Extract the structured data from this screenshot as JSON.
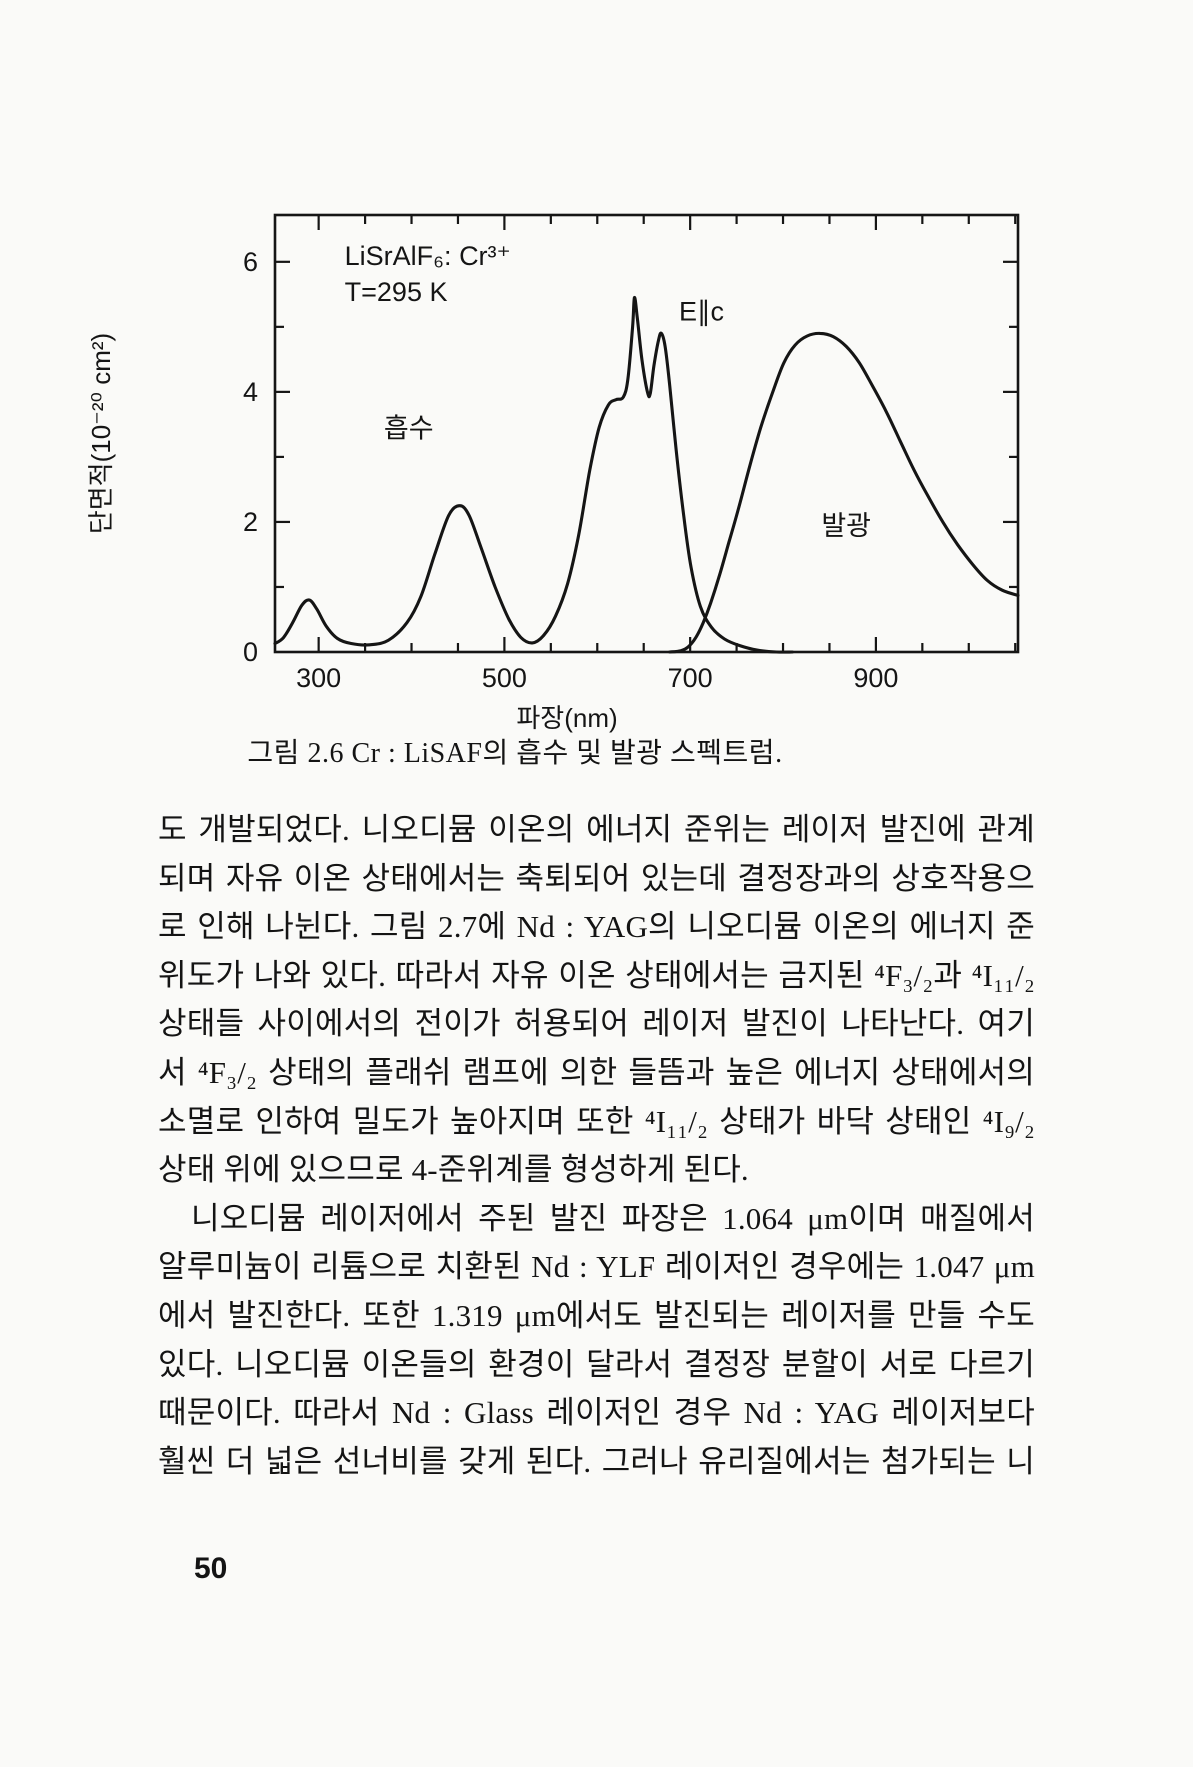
{
  "page": {
    "number": "50"
  },
  "figure": {
    "caption": "그림 2.6 Cr : LiSAF의 흡수 및 발광 스펙트럼."
  },
  "chart_data": {
    "type": "line",
    "title": "",
    "xlabel": "파장(nm)",
    "ylabel": "단면적(10⁻²⁰ cm²)",
    "xlim": [
      253,
      1053
    ],
    "ylim": [
      0,
      6.72
    ],
    "x_major_ticks": [
      300,
      500,
      700,
      900
    ],
    "x_minor_step": 50,
    "y_major_ticks": [
      0,
      2,
      4,
      6
    ],
    "y_minor_ticks": [
      1,
      3,
      5
    ],
    "grid": false,
    "legend": "none (labels drawn inside plot)",
    "annotations": [
      {
        "text": "LiSrAlF₆: Cr³⁺",
        "x": 328,
        "y": 5.95,
        "anchor": "start"
      },
      {
        "text": "T=295 K",
        "x": 328,
        "y": 5.4,
        "anchor": "start"
      },
      {
        "text": "E∥c",
        "x": 688,
        "y": 5.1,
        "anchor": "start"
      },
      {
        "text": "흡수",
        "x": 397,
        "y": 3.3,
        "anchor": "middle"
      },
      {
        "text": "발광",
        "x": 868,
        "y": 1.8,
        "anchor": "middle"
      }
    ],
    "series": [
      {
        "name": "absorption (흡수, E∥c)",
        "points": [
          [
            253,
            0.13
          ],
          [
            262,
            0.22
          ],
          [
            272,
            0.45
          ],
          [
            282,
            0.72
          ],
          [
            290,
            0.8
          ],
          [
            298,
            0.66
          ],
          [
            308,
            0.4
          ],
          [
            320,
            0.21
          ],
          [
            335,
            0.13
          ],
          [
            355,
            0.11
          ],
          [
            375,
            0.18
          ],
          [
            395,
            0.45
          ],
          [
            410,
            0.85
          ],
          [
            425,
            1.5
          ],
          [
            440,
            2.1
          ],
          [
            452,
            2.25
          ],
          [
            462,
            2.1
          ],
          [
            475,
            1.6
          ],
          [
            490,
            1.0
          ],
          [
            505,
            0.5
          ],
          [
            518,
            0.22
          ],
          [
            530,
            0.14
          ],
          [
            542,
            0.25
          ],
          [
            555,
            0.55
          ],
          [
            568,
            1.05
          ],
          [
            580,
            1.8
          ],
          [
            592,
            2.8
          ],
          [
            602,
            3.45
          ],
          [
            612,
            3.8
          ],
          [
            620,
            3.88
          ],
          [
            628,
            3.92
          ],
          [
            633,
            4.2
          ],
          [
            638,
            5.0
          ],
          [
            640,
            5.45
          ],
          [
            643,
            5.15
          ],
          [
            648,
            4.5
          ],
          [
            654,
            4.0
          ],
          [
            657,
            3.97
          ],
          [
            661,
            4.4
          ],
          [
            666,
            4.8
          ],
          [
            669,
            4.9
          ],
          [
            673,
            4.7
          ],
          [
            678,
            4.1
          ],
          [
            685,
            3.1
          ],
          [
            693,
            2.1
          ],
          [
            701,
            1.3
          ],
          [
            711,
            0.7
          ],
          [
            723,
            0.38
          ],
          [
            737,
            0.2
          ],
          [
            753,
            0.1
          ],
          [
            772,
            0.03
          ],
          [
            793,
            0.0
          ],
          [
            810,
            0.0
          ]
        ]
      },
      {
        "name": "emission (발광)",
        "points": [
          [
            678,
            0.0
          ],
          [
            690,
            0.02
          ],
          [
            698,
            0.08
          ],
          [
            706,
            0.22
          ],
          [
            714,
            0.45
          ],
          [
            722,
            0.75
          ],
          [
            731,
            1.15
          ],
          [
            741,
            1.65
          ],
          [
            752,
            2.2
          ],
          [
            764,
            2.85
          ],
          [
            776,
            3.45
          ],
          [
            789,
            4.0
          ],
          [
            801,
            4.45
          ],
          [
            813,
            4.72
          ],
          [
            826,
            4.86
          ],
          [
            840,
            4.9
          ],
          [
            854,
            4.85
          ],
          [
            868,
            4.7
          ],
          [
            882,
            4.45
          ],
          [
            896,
            4.1
          ],
          [
            911,
            3.7
          ],
          [
            926,
            3.25
          ],
          [
            941,
            2.8
          ],
          [
            956,
            2.4
          ],
          [
            972,
            2.0
          ],
          [
            988,
            1.65
          ],
          [
            1004,
            1.35
          ],
          [
            1020,
            1.1
          ],
          [
            1036,
            0.95
          ],
          [
            1053,
            0.87
          ]
        ]
      }
    ]
  },
  "body_text": {
    "lines": [
      {
        "text": "도 개발되었다. 니오디뮴 이온의 에너지 준위는 레이저 발진에 관계",
        "indent": false,
        "justify": true
      },
      {
        "text": "되며 자유 이온 상태에서는 축퇴되어 있는데 결정장과의 상호작용으",
        "indent": false,
        "justify": true
      },
      {
        "text": "로 인해 나뉜다. 그림 2.7에 Nd : YAG의 니오디뮴 이온의 에너지 준",
        "indent": false,
        "justify": true
      },
      {
        "text": "위도가 나와 있다. 따라서 자유 이온 상태에서는 금지된 ⁴F₃/₂과 ⁴I₁₁/₂",
        "indent": false,
        "justify": true
      },
      {
        "text": "상태들 사이에서의 전이가 허용되어 레이저 발진이 나타난다. 여기",
        "indent": false,
        "justify": true
      },
      {
        "text": "서 ⁴F₃/₂ 상태의 플래쉬 램프에 의한 들뜸과 높은 에너지 상태에서의",
        "indent": false,
        "justify": true
      },
      {
        "text": "소멸로 인하여 밀도가 높아지며 또한 ⁴I₁₁/₂ 상태가 바닥 상태인 ⁴I₉/₂",
        "indent": false,
        "justify": true
      },
      {
        "text": "상태 위에 있으므로 4-준위계를 형성하게 된다.",
        "indent": false,
        "justify": false
      },
      {
        "text": "니오디뮴 레이저에서 주된 발진 파장은 1.064 μm이며 매질에서",
        "indent": true,
        "justify": true
      },
      {
        "text": "알루미늄이 리튬으로 치환된 Nd : YLF 레이저인 경우에는 1.047 μm",
        "indent": false,
        "justify": true
      },
      {
        "text": "에서 발진한다. 또한 1.319 μm에서도 발진되는 레이저를 만들 수도",
        "indent": false,
        "justify": true
      },
      {
        "text": "있다. 니오디뮴 이온들의 환경이 달라서 결정장 분할이 서로 다르기",
        "indent": false,
        "justify": true
      },
      {
        "text": "때문이다. 따라서 Nd : Glass 레이저인 경우 Nd : YAG 레이저보다",
        "indent": false,
        "justify": true
      },
      {
        "text": "훨씬 더 넓은 선너비를 갖게 된다. 그러나 유리질에서는 첨가되는 니",
        "indent": false,
        "justify": true
      }
    ]
  }
}
